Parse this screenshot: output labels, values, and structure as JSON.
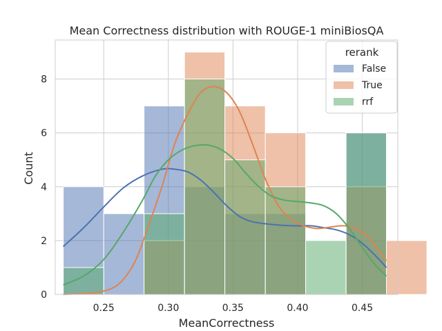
{
  "chart_data": {
    "type": "histogram",
    "title": "Mean Correctness distribution with ROUGE-1 miniBiosQA",
    "xlabel": "MeanCorrectness",
    "ylabel": "Count",
    "xlim": [
      0.2125,
      0.4775
    ],
    "ylim": [
      0,
      9.45
    ],
    "xticks": [
      0.25,
      0.3,
      0.35,
      0.4,
      0.45
    ],
    "xtick_labels": [
      "0.25",
      "0.30",
      "0.35",
      "0.40",
      "0.45"
    ],
    "yticks": [
      0,
      2,
      4,
      6,
      8
    ],
    "ytick_labels": [
      "0",
      "2",
      "4",
      "6",
      "8"
    ],
    "grid": true,
    "legend": {
      "title": "rerank",
      "position": "top-right"
    },
    "bin_edges": [
      0.2187,
      0.25,
      0.2812,
      0.3125,
      0.3437,
      0.375,
      0.4062,
      0.4375,
      0.4687
    ],
    "series": [
      {
        "name": "False",
        "color": "#4c72b0",
        "counts": [
          4,
          3,
          7,
          4,
          3,
          3,
          0,
          6,
          0
        ],
        "kde": [
          [
            0.2187,
            1.78
          ],
          [
            0.235,
            2.5
          ],
          [
            0.25,
            3.25
          ],
          [
            0.265,
            3.95
          ],
          [
            0.28,
            4.4
          ],
          [
            0.295,
            4.65
          ],
          [
            0.305,
            4.65
          ],
          [
            0.315,
            4.55
          ],
          [
            0.325,
            4.25
          ],
          [
            0.335,
            3.8
          ],
          [
            0.345,
            3.3
          ],
          [
            0.355,
            2.9
          ],
          [
            0.365,
            2.7
          ],
          [
            0.38,
            2.6
          ],
          [
            0.395,
            2.55
          ],
          [
            0.41,
            2.55
          ],
          [
            0.42,
            2.48
          ],
          [
            0.43,
            2.4
          ],
          [
            0.44,
            2.22
          ],
          [
            0.45,
            1.9
          ],
          [
            0.46,
            1.45
          ],
          [
            0.4687,
            1.0
          ]
        ]
      },
      {
        "name": "True",
        "color": "#dd8452",
        "counts": [
          0,
          0,
          2,
          9,
          7,
          6,
          0,
          4,
          2
        ],
        "kde": [
          [
            0.2187,
            0.0
          ],
          [
            0.24,
            0.05
          ],
          [
            0.255,
            0.2
          ],
          [
            0.265,
            0.55
          ],
          [
            0.275,
            1.3
          ],
          [
            0.285,
            2.6
          ],
          [
            0.295,
            4.0
          ],
          [
            0.305,
            5.6
          ],
          [
            0.315,
            6.7
          ],
          [
            0.325,
            7.5
          ],
          [
            0.335,
            7.72
          ],
          [
            0.345,
            7.5
          ],
          [
            0.355,
            6.8
          ],
          [
            0.365,
            5.6
          ],
          [
            0.375,
            4.3
          ],
          [
            0.385,
            3.3
          ],
          [
            0.395,
            2.8
          ],
          [
            0.405,
            2.55
          ],
          [
            0.415,
            2.45
          ],
          [
            0.425,
            2.5
          ],
          [
            0.435,
            2.55
          ],
          [
            0.445,
            2.45
          ],
          [
            0.455,
            2.1
          ],
          [
            0.4687,
            1.25
          ]
        ]
      },
      {
        "name": "rrf",
        "color": "#55a868",
        "counts": [
          1,
          0,
          3,
          8,
          5,
          4,
          2,
          6,
          0
        ],
        "kde": [
          [
            0.2187,
            0.35
          ],
          [
            0.235,
            0.7
          ],
          [
            0.25,
            1.3
          ],
          [
            0.265,
            2.3
          ],
          [
            0.28,
            3.5
          ],
          [
            0.29,
            4.4
          ],
          [
            0.3,
            5.0
          ],
          [
            0.31,
            5.35
          ],
          [
            0.32,
            5.52
          ],
          [
            0.33,
            5.55
          ],
          [
            0.34,
            5.4
          ],
          [
            0.35,
            5.05
          ],
          [
            0.36,
            4.5
          ],
          [
            0.37,
            4.0
          ],
          [
            0.38,
            3.65
          ],
          [
            0.39,
            3.5
          ],
          [
            0.4,
            3.45
          ],
          [
            0.41,
            3.4
          ],
          [
            0.42,
            3.3
          ],
          [
            0.43,
            3.0
          ],
          [
            0.44,
            2.45
          ],
          [
            0.45,
            1.75
          ],
          [
            0.46,
            1.1
          ],
          [
            0.4687,
            0.68
          ]
        ]
      }
    ]
  }
}
